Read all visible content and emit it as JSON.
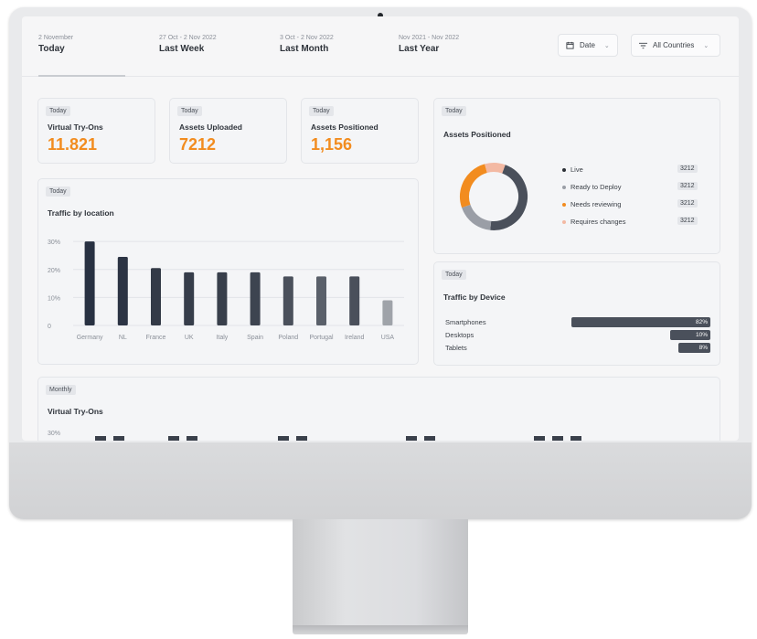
{
  "tabs": [
    {
      "sub": "2 November",
      "label": "Today"
    },
    {
      "sub": "27 Oct - 2 Nov 2022",
      "label": "Last Week"
    },
    {
      "sub": "3 Oct - 2 Nov 2022",
      "label": "Last Month"
    },
    {
      "sub": "Nov 2021 - Nov 2022",
      "label": "Last Year"
    }
  ],
  "filters": {
    "date_label": "Date",
    "country_label": "All Countries"
  },
  "kpis": [
    {
      "badge": "Today",
      "title": "Virtual Try-Ons",
      "value": "11.821"
    },
    {
      "badge": "Today",
      "title": "Assets Uploaded",
      "value": "7212"
    },
    {
      "badge": "Today",
      "title": "Assets Positioned",
      "value": "1,156"
    }
  ],
  "traffic_location": {
    "badge": "Today",
    "title": "Traffic by location"
  },
  "assets_positioned": {
    "badge": "Today",
    "title": "Assets Positioned",
    "legend": [
      {
        "label": "Live",
        "value": "3212",
        "color": "#2b2f36"
      },
      {
        "label": "Ready to Deploy",
        "value": "3212",
        "color": "#9a9ea6"
      },
      {
        "label": "Needs reviewing",
        "value": "3212",
        "color": "#f28c1f"
      },
      {
        "label": "Requires changes",
        "value": "3212",
        "color": "#f3b9a3"
      }
    ]
  },
  "traffic_device": {
    "badge": "Today",
    "title": "Traffic by Device",
    "items": [
      {
        "label": "Smartphones",
        "value": "82%",
        "fraction": 0.82
      },
      {
        "label": "Desktops",
        "value": "10%",
        "fraction": 0.1
      },
      {
        "label": "Tablets",
        "value": "8%",
        "fraction": 0.08
      }
    ]
  },
  "monthly": {
    "badge": "Monthly",
    "title": "Virtual Try-Ons",
    "ytick_top": "30%"
  },
  "chart_data": [
    {
      "type": "bar",
      "categories": [
        "Germany",
        "NL",
        "France",
        "UK",
        "Italy",
        "Spain",
        "Poland",
        "Portugal",
        "Ireland",
        "USA"
      ],
      "values": [
        30,
        24.5,
        20.5,
        19,
        19,
        19,
        17.5,
        17.5,
        17.5,
        9
      ],
      "yticks": [
        "30%",
        "20%",
        "10%",
        "0"
      ],
      "ylim": [
        0,
        32
      ],
      "colors": [
        "#283142",
        "#2c3444",
        "#333a47",
        "#363d4a",
        "#383f4b",
        "#3d4450",
        "#4a505b",
        "#5a606a",
        "#4a505b",
        "#9fa3a9"
      ],
      "title": "Traffic by location",
      "grid": true
    },
    {
      "type": "pie",
      "categories": [
        "Live",
        "Ready to Deploy",
        "Needs reviewing",
        "Requires changes"
      ],
      "values": [
        46,
        18,
        26,
        10
      ],
      "colors": [
        "#4a505b",
        "#9a9ea6",
        "#f28c1f",
        "#f3b9a3"
      ],
      "title": "Assets Positioned"
    }
  ]
}
